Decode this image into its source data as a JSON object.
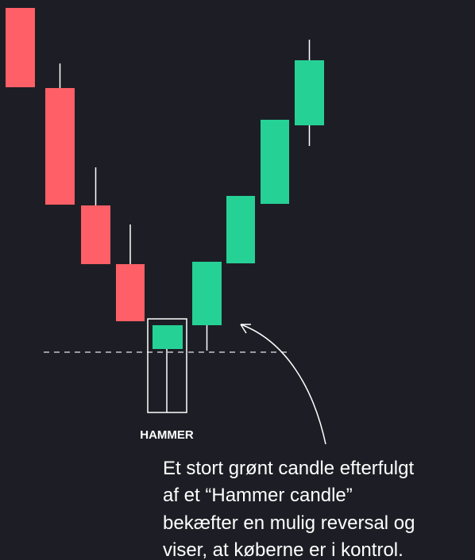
{
  "label": "HAMMER",
  "annotation": [
    "Et stort grønt candle efterfulgt",
    "af et “Hammer candle”",
    "bekæfter en mulig reversal og",
    "viser, at køberne er i kontrol."
  ]
}
